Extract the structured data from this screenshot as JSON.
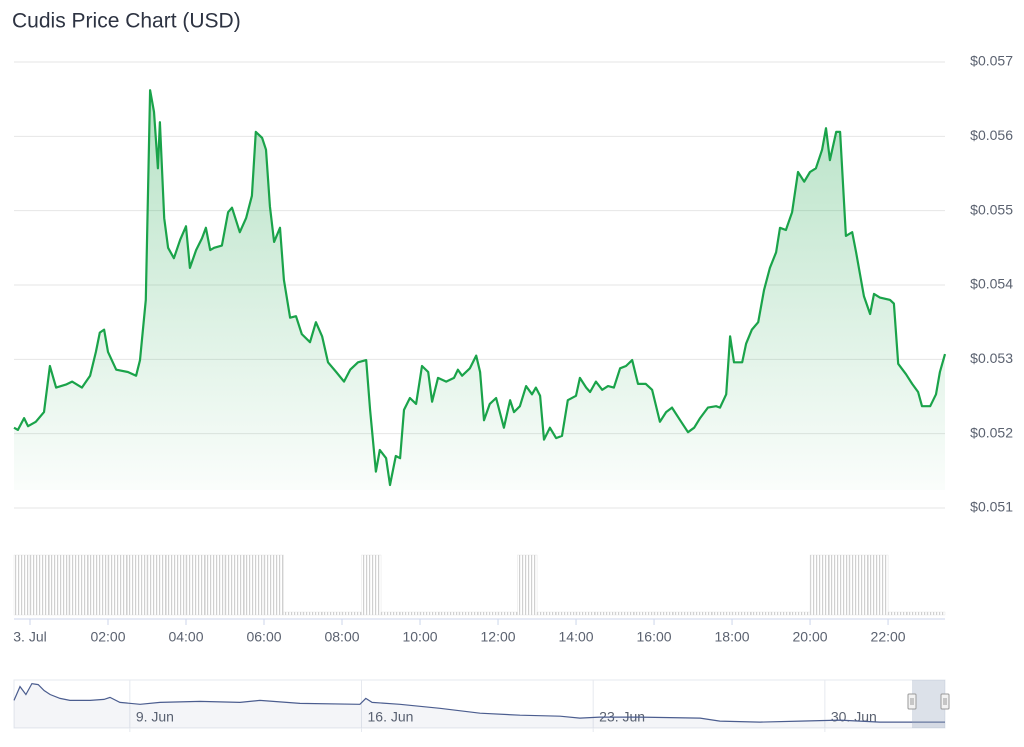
{
  "chart_data": {
    "type": "area",
    "title": "Cudis Price Chart (USD)",
    "color": "#1aa34a",
    "grid": true,
    "x": [
      -0.41,
      -0.31,
      -0.15,
      -0.05,
      0.15,
      0.36,
      0.51,
      0.67,
      0.92,
      1.08,
      1.33,
      1.54,
      1.69,
      1.79,
      1.9,
      2.0,
      2.21,
      2.51,
      2.72,
      2.82,
      2.97,
      3.08,
      3.18,
      3.28,
      3.33,
      3.44,
      3.54,
      3.69,
      3.85,
      4.0,
      4.1,
      4.26,
      4.41,
      4.51,
      4.62,
      4.72,
      4.92,
      5.08,
      5.18,
      5.38,
      5.54,
      5.69,
      5.79,
      5.95,
      6.05,
      6.15,
      6.26,
      6.41,
      6.51,
      6.67,
      6.82,
      6.97,
      7.18,
      7.33,
      7.49,
      7.64,
      7.85,
      8.05,
      8.21,
      8.41,
      8.62,
      8.72,
      8.87,
      8.97,
      9.13,
      9.23,
      9.38,
      9.49,
      9.59,
      9.74,
      9.9,
      10.05,
      10.21,
      10.31,
      10.46,
      10.67,
      10.87,
      10.97,
      11.08,
      11.28,
      11.44,
      11.54,
      11.64,
      11.79,
      11.95,
      12.15,
      12.31,
      12.41,
      12.56,
      12.72,
      12.87,
      12.97,
      13.08,
      13.18,
      13.33,
      13.49,
      13.64,
      13.79,
      14.0,
      14.1,
      14.26,
      14.36,
      14.51,
      14.67,
      14.82,
      14.97,
      15.13,
      15.28,
      15.44,
      15.59,
      15.79,
      15.95,
      16.15,
      16.31,
      16.46,
      16.67,
      16.87,
      17.03,
      17.18,
      17.38,
      17.59,
      17.69,
      17.85,
      17.95,
      18.05,
      18.26,
      18.36,
      18.51,
      18.67,
      18.82,
      18.97,
      19.13,
      19.23,
      19.38,
      19.54,
      19.69,
      19.85,
      20.0,
      20.15,
      20.31,
      20.41,
      20.51,
      20.67,
      20.77,
      20.92,
      21.08,
      21.18,
      21.38,
      21.54,
      21.64,
      21.79,
      22.05,
      22.15,
      22.26,
      22.46,
      22.62,
      22.77,
      22.87,
      23.08,
      23.23,
      23.33,
      23.46
    ],
    "values": [
      0.05208,
      0.05205,
      0.05221,
      0.0521,
      0.05216,
      0.05229,
      0.05291,
      0.05262,
      0.05266,
      0.0527,
      0.05262,
      0.05278,
      0.0531,
      0.05336,
      0.0534,
      0.0531,
      0.05286,
      0.05283,
      0.05278,
      0.05299,
      0.0538,
      0.05662,
      0.05633,
      0.05557,
      0.05619,
      0.0549,
      0.0545,
      0.05436,
      0.05461,
      0.05479,
      0.05423,
      0.05447,
      0.05463,
      0.05477,
      0.05447,
      0.0545,
      0.05453,
      0.05498,
      0.05504,
      0.05471,
      0.0549,
      0.0552,
      0.05606,
      0.05598,
      0.05582,
      0.05506,
      0.05458,
      0.05477,
      0.05407,
      0.05356,
      0.05358,
      0.05334,
      0.05323,
      0.0535,
      0.05331,
      0.05296,
      0.05283,
      0.0527,
      0.05286,
      0.05296,
      0.05299,
      0.05232,
      0.05149,
      0.05178,
      0.05167,
      0.05131,
      0.0517,
      0.05167,
      0.05232,
      0.05248,
      0.0524,
      0.05291,
      0.05283,
      0.05243,
      0.05275,
      0.0527,
      0.05275,
      0.05286,
      0.05278,
      0.05288,
      0.05305,
      0.05283,
      0.05218,
      0.0524,
      0.05248,
      0.05208,
      0.05245,
      0.05229,
      0.05237,
      0.05264,
      0.05253,
      0.05262,
      0.05251,
      0.05192,
      0.05208,
      0.05194,
      0.05197,
      0.05245,
      0.05251,
      0.05275,
      0.05262,
      0.05256,
      0.0527,
      0.05259,
      0.05264,
      0.05262,
      0.05288,
      0.05291,
      0.05299,
      0.05267,
      0.05267,
      0.05259,
      0.05216,
      0.05229,
      0.05235,
      0.05218,
      0.05202,
      0.05208,
      0.05221,
      0.05235,
      0.05237,
      0.05235,
      0.05253,
      0.05331,
      0.05296,
      0.05296,
      0.05321,
      0.0534,
      0.0535,
      0.05393,
      0.05423,
      0.05444,
      0.05477,
      0.05474,
      0.05498,
      0.05552,
      0.05539,
      0.05552,
      0.05557,
      0.05582,
      0.05611,
      0.05568,
      0.05606,
      0.05606,
      0.05466,
      0.05471,
      0.05444,
      0.05385,
      0.05361,
      0.05388,
      0.05383,
      0.0538,
      0.05375,
      0.05294,
      0.0528,
      0.05267,
      0.05256,
      0.05237,
      0.05237,
      0.05253,
      0.05283,
      0.05307
    ],
    "xlim": [
      -0.41,
      23.46
    ],
    "ylim": [
      0.051,
      0.057
    ],
    "yticks": [
      {
        "value": 0.051,
        "label": "$0.051"
      },
      {
        "value": 0.052,
        "label": "$0.052"
      },
      {
        "value": 0.053,
        "label": "$0.053"
      },
      {
        "value": 0.054,
        "label": "$0.054"
      },
      {
        "value": 0.055,
        "label": "$0.055"
      },
      {
        "value": 0.056,
        "label": "$0.056"
      },
      {
        "value": 0.057,
        "label": "$0.057"
      }
    ],
    "xticks": [
      {
        "value": 0,
        "label": "3. Jul"
      },
      {
        "value": 2,
        "label": "02:00"
      },
      {
        "value": 4,
        "label": "04:00"
      },
      {
        "value": 6,
        "label": "06:00"
      },
      {
        "value": 8,
        "label": "08:00"
      },
      {
        "value": 10,
        "label": "10:00"
      },
      {
        "value": 12,
        "label": "12:00"
      },
      {
        "value": 14,
        "label": "14:00"
      },
      {
        "value": 16,
        "label": "16:00"
      },
      {
        "value": 18,
        "label": "18:00"
      },
      {
        "value": 20,
        "label": "20:00"
      },
      {
        "value": 22,
        "label": "22:00"
      }
    ],
    "volume": {
      "color": "#d6d6d6",
      "ylim": [
        0,
        1
      ],
      "x": [
        -0.25,
        0.25,
        0.75,
        1.25,
        1.75,
        2.25,
        2.75,
        3.25,
        3.75,
        4.25,
        4.75,
        5.25,
        5.75,
        6.25,
        6.75,
        7.25,
        7.75,
        8.25,
        8.75,
        9.25,
        9.75,
        10.25,
        10.75,
        11.25,
        11.75,
        12.25,
        12.75,
        13.25,
        13.75,
        14.25,
        14.75,
        15.25,
        15.75,
        16.25,
        16.75,
        17.25,
        17.75,
        18.25,
        18.75,
        19.25,
        19.75,
        20.25,
        20.75,
        21.25,
        21.75,
        22.25,
        22.75,
        23.25
      ],
      "values": [
        1,
        1,
        1,
        1,
        1,
        1,
        1,
        1,
        1,
        1,
        1,
        1,
        1,
        1,
        0.05,
        0.05,
        0.05,
        0.05,
        1,
        0.05,
        0.05,
        0.05,
        0.05,
        0.05,
        0.05,
        0.05,
        1,
        0.05,
        0.05,
        0.05,
        0.05,
        0.05,
        0.05,
        0.05,
        0.05,
        0.05,
        0.05,
        0.05,
        0.05,
        0.05,
        0.05,
        1,
        1,
        1,
        1,
        0.05,
        0.05,
        0.05
      ]
    },
    "navigator": {
      "color": "#4b5d8f",
      "x": [
        5.5,
        5.68,
        5.86,
        6.04,
        6.23,
        6.41,
        6.59,
        6.89,
        7.19,
        7.8,
        8.22,
        8.4,
        8.7,
        9.31,
        9.91,
        11.12,
        12.33,
        12.93,
        14.14,
        15.95,
        16.13,
        16.32,
        17.16,
        18.37,
        19.58,
        20.79,
        22.0,
        22.6,
        23.2,
        24.41,
        26.23,
        26.83,
        28.04,
        29.25,
        30.45,
        31.66,
        32.87,
        33.63
      ],
      "values": [
        0.05947,
        0.06355,
        0.06122,
        0.06443,
        0.06413,
        0.06238,
        0.06122,
        0.06005,
        0.05947,
        0.05947,
        0.05976,
        0.06034,
        0.05888,
        0.0583,
        0.05888,
        0.05918,
        0.05888,
        0.05947,
        0.05859,
        0.0583,
        0.06005,
        0.05888,
        0.0583,
        0.05713,
        0.05568,
        0.05509,
        0.0548,
        0.05422,
        0.05451,
        0.05451,
        0.05422,
        0.05334,
        0.05305,
        0.05334,
        0.05363,
        0.05305,
        0.05305,
        0.05305
      ],
      "xlim": [
        5.5,
        33.63
      ],
      "ylim": [
        0.0513,
        0.0655
      ],
      "xticks": [
        {
          "value": 9,
          "label": "9. Jun"
        },
        {
          "value": 16,
          "label": "16. Jun"
        },
        {
          "value": 23,
          "label": "23. Jun"
        },
        {
          "value": 30,
          "label": "30. Jun"
        }
      ]
    }
  }
}
